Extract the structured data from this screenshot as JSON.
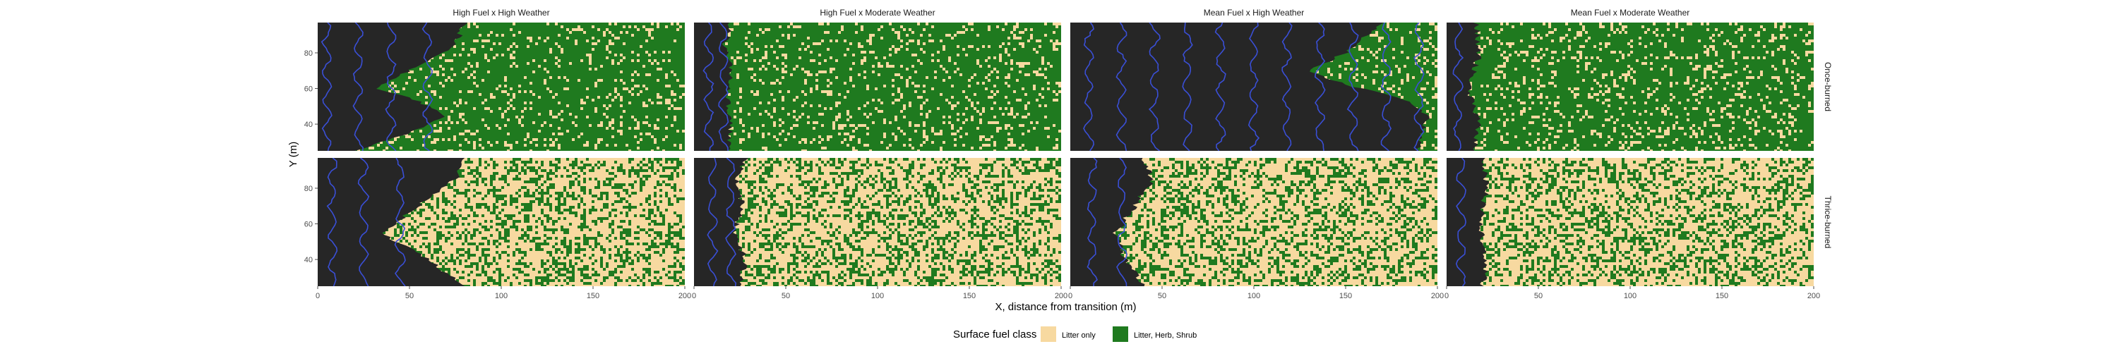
{
  "chart_data": {
    "type": "heatmap",
    "description_text": "",
    "x_title": "X, distance from transition (m)",
    "y_title": "Y (m)",
    "x_ticks": [
      0,
      50,
      100,
      150,
      200
    ],
    "y_ticks": [
      40,
      60,
      80
    ],
    "xlim": [
      0,
      200
    ],
    "ylim": [
      25,
      97
    ],
    "columns": [
      "High Fuel x High Weather",
      "High Fuel x Moderate Weather",
      "Mean Fuel x High Weather",
      "Mean Fuel x Moderate Weather"
    ],
    "rows": [
      "Once-burned",
      "Thrice-burned"
    ],
    "legend": {
      "title": "Surface fuel class",
      "items": [
        {
          "label": "Litter only",
          "color": "#f7d9a0"
        },
        {
          "label": "Litter, Herb, Shrub",
          "color": "#1f7a1f"
        }
      ]
    },
    "colors": {
      "burned": "#262626",
      "fire_contour": "#3a4fd6",
      "litter_only": "#f7d9a0",
      "litter_herb_shrub": "#1f7a1f"
    },
    "panels": [
      {
        "row": 0,
        "col": 0,
        "front_profile": [
          [
            25,
            20
          ],
          [
            35,
            50
          ],
          [
            45,
            70
          ],
          [
            55,
            50
          ],
          [
            60,
            30
          ],
          [
            65,
            40
          ],
          [
            75,
            60
          ],
          [
            85,
            75
          ],
          [
            97,
            80
          ]
        ],
        "contours": [
          5,
          22,
          40,
          60
        ],
        "green_share": 0.85
      },
      {
        "row": 0,
        "col": 1,
        "front_profile": [
          [
            25,
            18
          ],
          [
            40,
            20
          ],
          [
            55,
            18
          ],
          [
            70,
            20
          ],
          [
            85,
            17
          ],
          [
            97,
            20
          ]
        ],
        "contours": [
          8,
          16
        ],
        "green_share": 0.85
      },
      {
        "row": 0,
        "col": 2,
        "front_profile": [
          [
            25,
            190
          ],
          [
            45,
            195
          ],
          [
            55,
            180
          ],
          [
            62,
            150
          ],
          [
            70,
            130
          ],
          [
            80,
            150
          ],
          [
            97,
            170
          ]
        ],
        "contours": [
          10,
          28,
          46,
          64,
          82,
          100,
          118,
          136,
          154,
          172,
          190
        ],
        "green_share": 0.85
      },
      {
        "row": 0,
        "col": 3,
        "front_profile": [
          [
            25,
            15
          ],
          [
            40,
            18
          ],
          [
            60,
            12
          ],
          [
            80,
            18
          ],
          [
            97,
            16
          ]
        ],
        "contours": [
          6
        ],
        "green_share": 0.85
      },
      {
        "row": 1,
        "col": 0,
        "front_profile": [
          [
            25,
            80
          ],
          [
            40,
            60
          ],
          [
            55,
            35
          ],
          [
            70,
            55
          ],
          [
            85,
            75
          ],
          [
            97,
            80
          ]
        ],
        "contours": [
          8,
          25,
          45
        ],
        "green_share": 0.35
      },
      {
        "row": 1,
        "col": 1,
        "front_profile": [
          [
            25,
            25
          ],
          [
            40,
            28
          ],
          [
            55,
            22
          ],
          [
            70,
            26
          ],
          [
            85,
            24
          ],
          [
            97,
            28
          ]
        ],
        "contours": [
          10,
          20
        ],
        "green_share": 0.35
      },
      {
        "row": 1,
        "col": 2,
        "front_profile": [
          [
            25,
            40
          ],
          [
            40,
            30
          ],
          [
            55,
            25
          ],
          [
            70,
            35
          ],
          [
            85,
            45
          ],
          [
            97,
            40
          ]
        ],
        "contours": [
          12,
          28
        ],
        "green_share": 0.35
      },
      {
        "row": 1,
        "col": 3,
        "front_profile": [
          [
            25,
            20
          ],
          [
            40,
            22
          ],
          [
            60,
            18
          ],
          [
            80,
            22
          ],
          [
            97,
            20
          ]
        ],
        "contours": [
          8
        ],
        "green_share": 0.35
      }
    ]
  }
}
